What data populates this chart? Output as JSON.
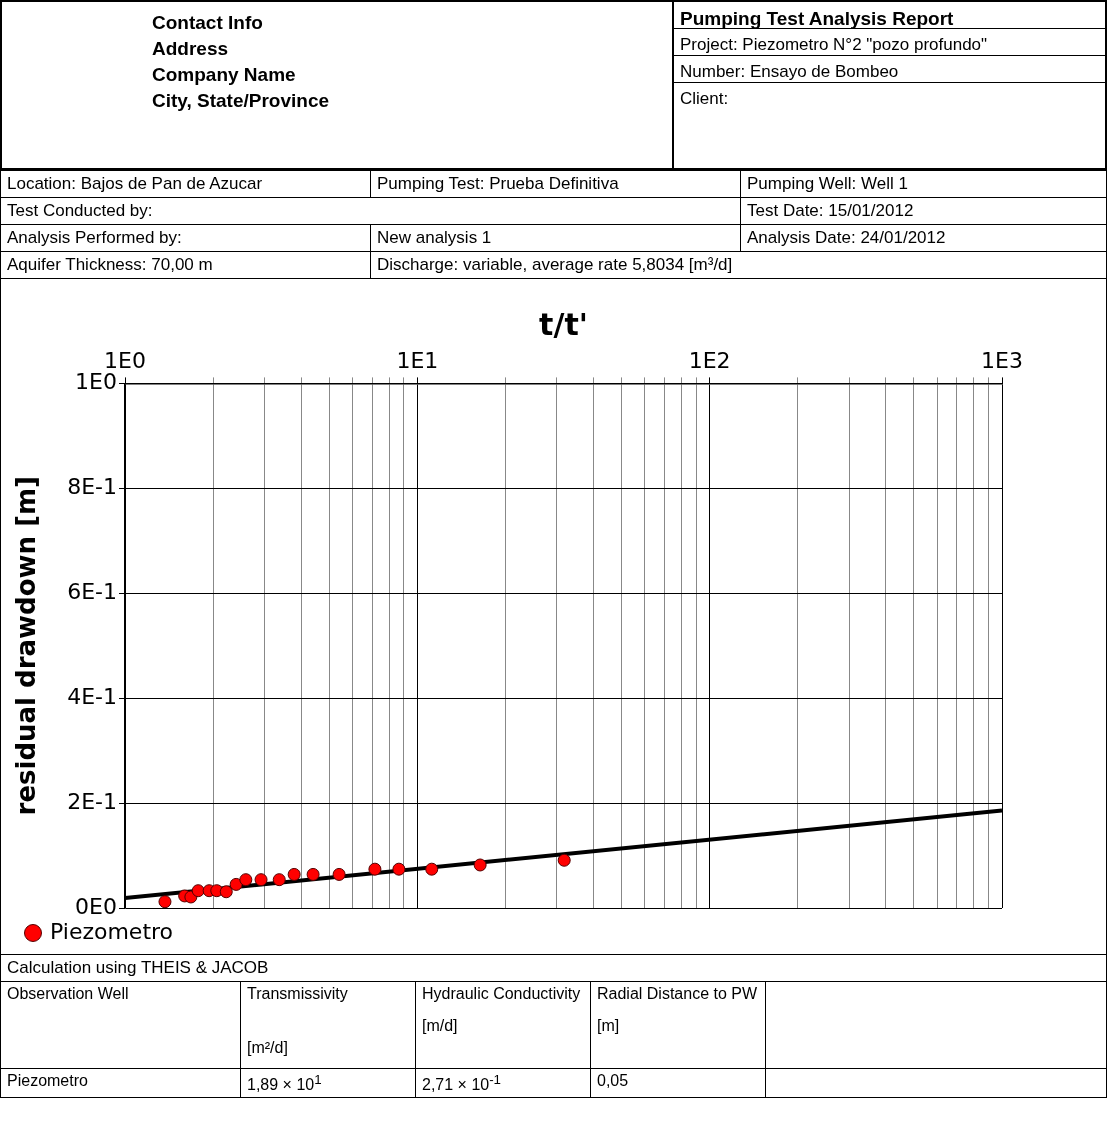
{
  "chart_data": {
    "type": "scatter",
    "title": "Pumping Test Analysis Report",
    "xlabel": "t/t'",
    "ylabel": "residual drawdown [m]",
    "log": "x",
    "grid": true,
    "legend": "bottom left",
    "marker": "circle",
    "xlim": [
      1,
      1000
    ],
    "ylim": [
      0,
      1
    ],
    "xticks": [
      {
        "value": 1,
        "label": "1E0"
      },
      {
        "value": 2,
        "label": null
      },
      {
        "value": 3,
        "label": null
      },
      {
        "value": 4,
        "label": null
      },
      {
        "value": 5,
        "label": null
      },
      {
        "value": 6,
        "label": null
      },
      {
        "value": 7,
        "label": null
      },
      {
        "value": 8,
        "label": null
      },
      {
        "value": 9,
        "label": null
      },
      {
        "value": 10,
        "label": "1E1"
      },
      {
        "value": 20,
        "label": null
      },
      {
        "value": 30,
        "label": null
      },
      {
        "value": 40,
        "label": null
      },
      {
        "value": 50,
        "label": null
      },
      {
        "value": 60,
        "label": null
      },
      {
        "value": 70,
        "label": null
      },
      {
        "value": 80,
        "label": null
      },
      {
        "value": 90,
        "label": null
      },
      {
        "value": 100,
        "label": "1E2"
      },
      {
        "value": 200,
        "label": null
      },
      {
        "value": 300,
        "label": null
      },
      {
        "value": 400,
        "label": null
      },
      {
        "value": 500,
        "label": null
      },
      {
        "value": 600,
        "label": null
      },
      {
        "value": 700,
        "label": null
      },
      {
        "value": 800,
        "label": null
      },
      {
        "value": 900,
        "label": null
      },
      {
        "value": 1000,
        "label": "1E3"
      }
    ],
    "yticks": [
      {
        "value": 0,
        "label": "0E0"
      },
      {
        "value": 0.2,
        "label": "2E-1"
      },
      {
        "value": 0.4,
        "label": "4E-1"
      },
      {
        "value": 0.6,
        "label": "6E-1"
      },
      {
        "value": 0.8,
        "label": "8E-1"
      },
      {
        "value": 1,
        "label": "1E0"
      }
    ],
    "series": [
      {
        "name": "Piezometro",
        "color": "#ff0000",
        "x": [
          1.37,
          1.6,
          1.68,
          1.78,
          1.94,
          2.06,
          2.22,
          2.4,
          2.59,
          2.92,
          3.37,
          3.79,
          4.4,
          5.4,
          7.16,
          8.65,
          11.2,
          16.4,
          31.8
        ],
        "values": [
          0.012,
          0.023,
          0.021,
          0.033,
          0.033,
          0.033,
          0.031,
          0.045,
          0.054,
          0.054,
          0.054,
          0.064,
          0.064,
          0.064,
          0.074,
          0.074,
          0.074,
          0.082,
          0.091
        ]
      },
      {
        "type": "line",
        "color": "#000000",
        "marker": "none",
        "line_style": "solid",
        "x": [
          1,
          1000
        ],
        "values": [
          0.019,
          0.186
        ]
      }
    ],
    "annotations": [
      "Contact Info",
      "Address",
      "Company Name",
      "City, State/Province",
      "Project:  Piezometro N°2 \"pozo profundo\"",
      "Number: Ensayo de Bombeo",
      "Client:",
      "Location: Bajos de Pan de Azucar",
      "Pumping Test: Prueba Definitiva",
      "Pumping Well: Well 1",
      "Test Conducted by:",
      "Test Date: 15/01/2012",
      "Analysis Performed by:",
      "New analysis 1",
      "Analysis Date: 24/01/2012",
      "Aquifer Thickness: 70,00 m",
      "Discharge: variable, average rate 5,8034 [m³/d]",
      "Calculation using THEIS & JACOB",
      "Observation Well",
      "Transmissivity",
      "[m²/d]",
      "Hydraulic Conductivity",
      "[m/d]",
      "Radial Distance to PW",
      "[m]",
      "Piezometro",
      "1,89 × 10$^{1}$",
      "2,71 × 10$^{-1}$",
      "0,05"
    ]
  }
}
